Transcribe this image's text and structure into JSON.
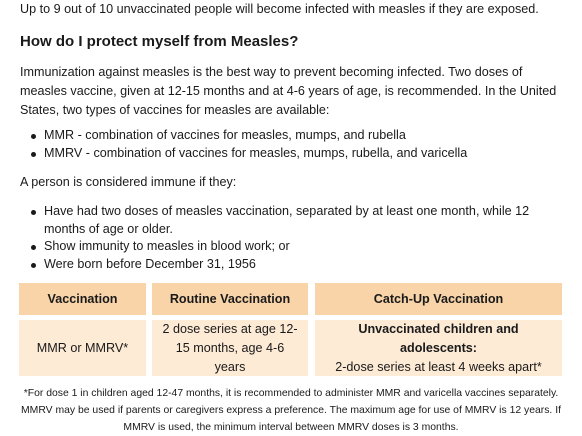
{
  "intro": "Up to 9 out of 10 unvaccinated people will become infected with measles if they are exposed.",
  "heading": "How do I protect myself from Measles?",
  "paragraph1": "Immunization against measles is the best way to prevent becoming infected. Two doses of measles vaccine, given at 12-15 months and at 4-6 years of age, is recommended. In the United States, two types of vaccines for measles are available:",
  "vaccine_list": [
    "MMR - combination of vaccines for measles, mumps, and rubella",
    "MMRV - combination of vaccines for measles, mumps, rubella, and varicella"
  ],
  "paragraph2": "A person is considered immune if they:",
  "immune_list": [
    "Have had two doses of measles vaccination, separated by at least one month, while 12 months of age or older.",
    "Show immunity to measles in blood work; or",
    "Were born before December 31, 1956"
  ],
  "table": {
    "headers": [
      "Vaccination",
      "Routine Vaccination",
      "Catch-Up Vaccination"
    ],
    "row": {
      "vaccination": "MMR or MMRV*",
      "routine": "2 dose series at age 12-15 months, age 4-6 years",
      "catchup_title": "Unvaccinated children and adolescents:",
      "catchup_text": "2-dose series at least 4 weeks apart*"
    }
  },
  "footnote": "*For dose 1 in children aged 12-47 months, it is recommended to administer MMR and varicella vaccines separately. MMRV may be used if parents or caregivers express a preference. The maximum age for use of MMRV is 12 years. If MMRV is used, the minimum interval between MMRV doses is 3 months."
}
